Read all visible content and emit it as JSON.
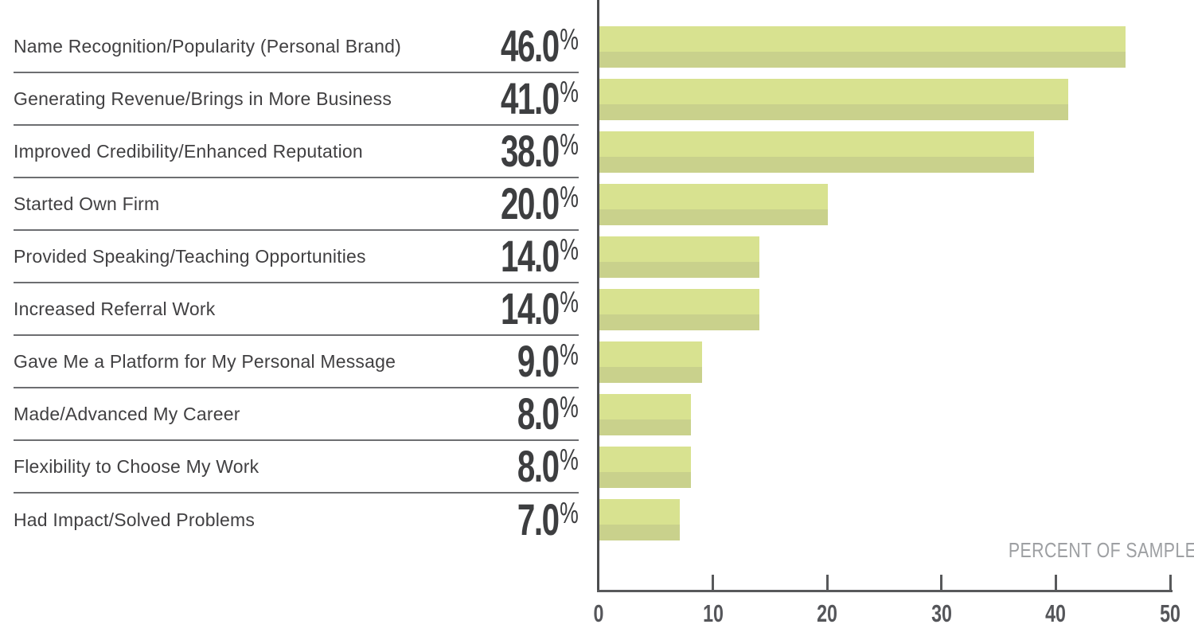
{
  "chart_data": {
    "type": "bar",
    "orientation": "horizontal",
    "categories": [
      "Name Recognition/Popularity (Personal Brand)",
      "Generating Revenue/Brings in More Business",
      "Improved Credibility/Enhanced Reputation",
      "Started Own Firm",
      "Provided Speaking/Teaching Opportunities",
      "Increased Referral Work",
      "Gave Me a Platform for My Personal Message",
      "Made/Advanced My Career",
      "Flexibility to Choose My Work",
      "Had Impact/Solved Problems"
    ],
    "values": [
      46.0,
      41.0,
      38.0,
      20.0,
      14.0,
      14.0,
      9.0,
      8.0,
      8.0,
      7.0
    ],
    "value_labels": [
      "46.0",
      "41.0",
      "38.0",
      "20.0",
      "14.0",
      "14.0",
      "9.0",
      "8.0",
      "8.0",
      "7.0"
    ],
    "percent_symbol": "%",
    "xlabel": "PERCENT OF SAMPLE",
    "xlim": [
      0,
      50
    ],
    "xticks": [
      0,
      10,
      20,
      30,
      40,
      50
    ],
    "grid": false,
    "legend": false,
    "colors": {
      "bar_light": "#d8e290",
      "bar_shade": "#c9d18c",
      "label_text": "#414042",
      "value_text": "#3d3e40",
      "axis": "#58595b",
      "separator": "#6d6e71",
      "caption_text": "#9d9fa2"
    }
  }
}
